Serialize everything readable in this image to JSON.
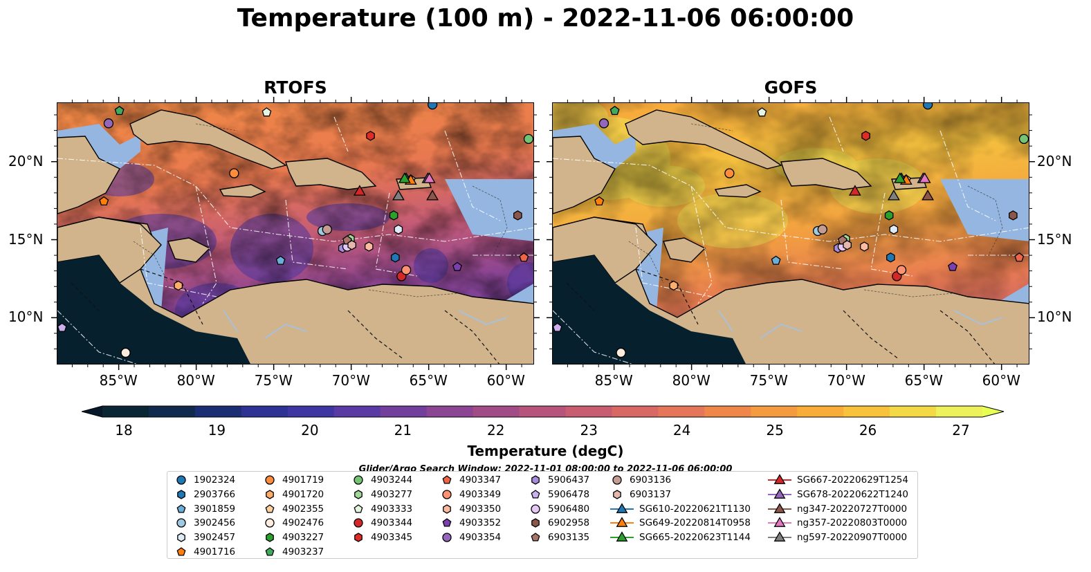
{
  "title": "Temperature (100 m) - 2022-11-06 06:00:00",
  "panels": [
    {
      "title": "RTOFS"
    },
    {
      "title": "GOFS"
    }
  ],
  "x_ticks": [
    "85°W",
    "80°W",
    "75°W",
    "70°W",
    "65°W",
    "60°W"
  ],
  "y_ticks": [
    "20°N",
    "15°N",
    "10°N"
  ],
  "colorbar": {
    "label": "Temperature (degC)",
    "ticks": [
      "18",
      "19",
      "20",
      "21",
      "22",
      "23",
      "24",
      "25",
      "26",
      "27"
    ],
    "colors": [
      "#0a2533",
      "#0f2a4d",
      "#1b2e73",
      "#2d3293",
      "#3f36a2",
      "#5a3ba3",
      "#733f9c",
      "#8b4592",
      "#a14c86",
      "#b6547c",
      "#c85c70",
      "#d86866",
      "#e6765a",
      "#ef874b",
      "#f49a3f",
      "#f7ad37",
      "#f8c23c",
      "#f4d947",
      "#ecf15c"
    ],
    "under_color": "#06182a",
    "over_color": "#e8ff54"
  },
  "search_window": "Glider/Argo Search Window: 2022-11-01 08:00:00 to 2022-11-06 06:00:00",
  "legend": [
    {
      "label": "1902324",
      "marker": "circle",
      "color": "#1f77b4"
    },
    {
      "label": "2903766",
      "marker": "hexagon",
      "color": "#1f77b4"
    },
    {
      "label": "3901859",
      "marker": "pentagon",
      "color": "#6baed6"
    },
    {
      "label": "3902456",
      "marker": "circle",
      "color": "#9ecae1"
    },
    {
      "label": "3902457",
      "marker": "hexagon",
      "color": "#deebf7"
    },
    {
      "label": "4901716",
      "marker": "pentagon",
      "color": "#ff7f0e"
    },
    {
      "label": "4901719",
      "marker": "circle",
      "color": "#fd8d3c"
    },
    {
      "label": "4901720",
      "marker": "hexagon",
      "color": "#fdae6b"
    },
    {
      "label": "4902355",
      "marker": "pentagon",
      "color": "#fdd0a2"
    },
    {
      "label": "4902476",
      "marker": "circle",
      "color": "#feedde"
    },
    {
      "label": "4903227",
      "marker": "hexagon",
      "color": "#2ca02c"
    },
    {
      "label": "4903237",
      "marker": "pentagon",
      "color": "#41ab5d"
    },
    {
      "label": "4903244",
      "marker": "circle",
      "color": "#74c476"
    },
    {
      "label": "4903277",
      "marker": "hexagon",
      "color": "#a1d99b"
    },
    {
      "label": "4903333",
      "marker": "pentagon",
      "color": "#e5f5e0"
    },
    {
      "label": "4903344",
      "marker": "circle",
      "color": "#d62728"
    },
    {
      "label": "4903345",
      "marker": "hexagon",
      "color": "#de2d26"
    },
    {
      "label": "4903347",
      "marker": "pentagon",
      "color": "#ef6548"
    },
    {
      "label": "4903349",
      "marker": "circle",
      "color": "#fc9272"
    },
    {
      "label": "4903350",
      "marker": "hexagon",
      "color": "#fcbba1"
    },
    {
      "label": "4903352",
      "marker": "pentagon",
      "color": "#7b3fb0"
    },
    {
      "label": "4903354",
      "marker": "circle",
      "color": "#9467bd"
    },
    {
      "label": "5906437",
      "marker": "hexagon",
      "color": "#a88bd9"
    },
    {
      "label": "5906478",
      "marker": "pentagon",
      "color": "#cbb0ee"
    },
    {
      "label": "5906480",
      "marker": "circle",
      "color": "#e6c8f5"
    },
    {
      "label": "6902958",
      "marker": "hexagon",
      "color": "#8c564b"
    },
    {
      "label": "6903135",
      "marker": "pentagon",
      "color": "#a9756a"
    },
    {
      "label": "6903136",
      "marker": "circle",
      "color": "#c49c94"
    },
    {
      "label": "6903137",
      "marker": "hexagon",
      "color": "#e6b8ad"
    },
    {
      "label": "SG610-20220621T1130",
      "marker": "triangle-line",
      "color": "#1f77b4"
    },
    {
      "label": "SG649-20220814T0958",
      "marker": "triangle-line",
      "color": "#ff7f0e"
    },
    {
      "label": "SG665-20220623T1144",
      "marker": "triangle-line",
      "color": "#2ca02c"
    },
    {
      "label": "SG667-20220629T1254",
      "marker": "triangle-line",
      "color": "#d62728"
    },
    {
      "label": "SG678-20220622T1240",
      "marker": "triangle-line",
      "color": "#9467bd"
    },
    {
      "label": "ng347-20220727T0000",
      "marker": "triangle-line",
      "color": "#8c564b"
    },
    {
      "label": "ng357-20220803T0000",
      "marker": "triangle-line",
      "color": "#e377c2"
    },
    {
      "label": "ng597-20220907T0000",
      "marker": "triangle-line",
      "color": "#7f7f7f"
    }
  ],
  "colors": {
    "land": "#d2b48c",
    "shelf": "#94b6e0",
    "deep_pacific": "#06202e",
    "river": "#a9c0d8"
  }
}
